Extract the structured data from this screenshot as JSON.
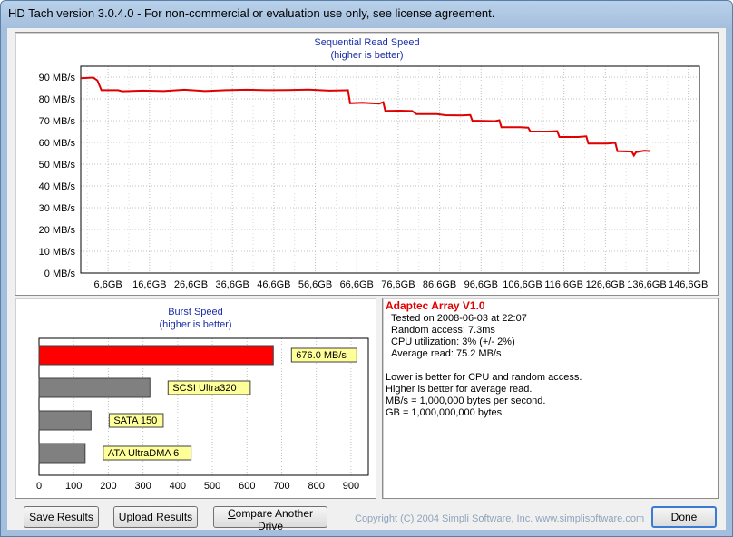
{
  "window": {
    "title": "HD Tach version 3.0.4.0  - For non-commercial or evaluation use only, see license agreement."
  },
  "sequential": {
    "title": "Sequential Read Speed",
    "subtitle": "(higher is better)",
    "chart_data": {
      "type": "line",
      "title": "Sequential Read Speed",
      "subtitle": "(higher is better)",
      "y_ticks": [
        "0 MB/s",
        "10 MB/s",
        "20 MB/s",
        "30 MB/s",
        "40 MB/s",
        "50 MB/s",
        "60 MB/s",
        "70 MB/s",
        "80 MB/s",
        "90 MB/s"
      ],
      "x_ticks": [
        "6,6GB",
        "16,6GB",
        "26,6GB",
        "36,6GB",
        "46,6GB",
        "56,6GB",
        "66,6GB",
        "76,6GB",
        "86,6GB",
        "96,6GB",
        "106,6GB",
        "116,6GB",
        "126,6GB",
        "136,6GB",
        "146,6GB"
      ],
      "xlim": [
        0,
        149.3
      ],
      "ylim": [
        0,
        95
      ],
      "grid": true,
      "series": [
        {
          "color": "#e00000",
          "points": [
            [
              0,
              89.5
            ],
            [
              3,
              89.8
            ],
            [
              4,
              88.5
            ],
            [
              5,
              84
            ],
            [
              9,
              84
            ],
            [
              10,
              83.5
            ],
            [
              15,
              83.8
            ],
            [
              20,
              83.6
            ],
            [
              25,
              84.2
            ],
            [
              30,
              83.6
            ],
            [
              35,
              84
            ],
            [
              40,
              84.2
            ],
            [
              45,
              84
            ],
            [
              50,
              84.1
            ],
            [
              55,
              84.3
            ],
            [
              60,
              83.8
            ],
            [
              64.5,
              84
            ],
            [
              65,
              78
            ],
            [
              68,
              78.2
            ],
            [
              72,
              77.8
            ],
            [
              73,
              78.5
            ],
            [
              73.5,
              74.5
            ],
            [
              77,
              74.6
            ],
            [
              80,
              74.4
            ],
            [
              81,
              73
            ],
            [
              86,
              73
            ],
            [
              88,
              72.5
            ],
            [
              92,
              72.4
            ],
            [
              94,
              72.6
            ],
            [
              94.5,
              70
            ],
            [
              100,
              69.8
            ],
            [
              101,
              70.2
            ],
            [
              101.5,
              67
            ],
            [
              106,
              67
            ],
            [
              108,
              66.8
            ],
            [
              108.5,
              65
            ],
            [
              113,
              65
            ],
            [
              115,
              65.2
            ],
            [
              115.5,
              62.5
            ],
            [
              120,
              62.5
            ],
            [
              122,
              62.8
            ],
            [
              122.5,
              59.5
            ],
            [
              127,
              59.5
            ],
            [
              129,
              59.8
            ],
            [
              129.5,
              56
            ],
            [
              133,
              55.8
            ],
            [
              133.5,
              54
            ],
            [
              134,
              55.5
            ],
            [
              136,
              56.2
            ],
            [
              137.5,
              56
            ]
          ]
        }
      ]
    }
  },
  "burst": {
    "title": "Burst Speed",
    "subtitle": "(higher is better)",
    "chart_data": {
      "type": "bar",
      "orientation": "horizontal",
      "title": "Burst Speed",
      "subtitle": "(higher is better)",
      "xlim": [
        0,
        950
      ],
      "x_ticks": [
        0,
        100,
        200,
        300,
        400,
        500,
        600,
        700,
        800,
        900
      ],
      "bars": [
        {
          "label": "676.0 MB/s",
          "value": 676,
          "color": "#ff0000"
        },
        {
          "label": "SCSI Ultra320",
          "value": 320,
          "color": "#808080"
        },
        {
          "label": "SATA 150",
          "value": 150,
          "color": "#808080"
        },
        {
          "label": "ATA UltraDMA 6",
          "value": 133,
          "color": "#808080"
        }
      ]
    }
  },
  "info": {
    "drive_name": "Adaptec Array V1.0",
    "tested_on": "Tested on 2008-06-03 at 22:07",
    "random_access": "Random access: 7.3ms",
    "cpu_utilization": "CPU utilization: 3% (+/- 2%)",
    "average_read": "Average read: 75.2 MB/s",
    "note1": "Lower is better for CPU and random access.",
    "note2": "Higher is better for average read.",
    "note3": "MB/s = 1,000,000 bytes per second.",
    "note4": "GB = 1,000,000,000 bytes."
  },
  "buttons": {
    "save_prefix": "S",
    "save_rest": "ave Results",
    "upload_prefix": "U",
    "upload_rest": "pload Results",
    "compare_prefix": "C",
    "compare_rest": "ompare Another Drive",
    "done_prefix": "D",
    "done_rest": "one"
  },
  "footer": {
    "copyright": "Copyright (C) 2004 Simpli Software, Inc. www.simplisoftware.com"
  }
}
